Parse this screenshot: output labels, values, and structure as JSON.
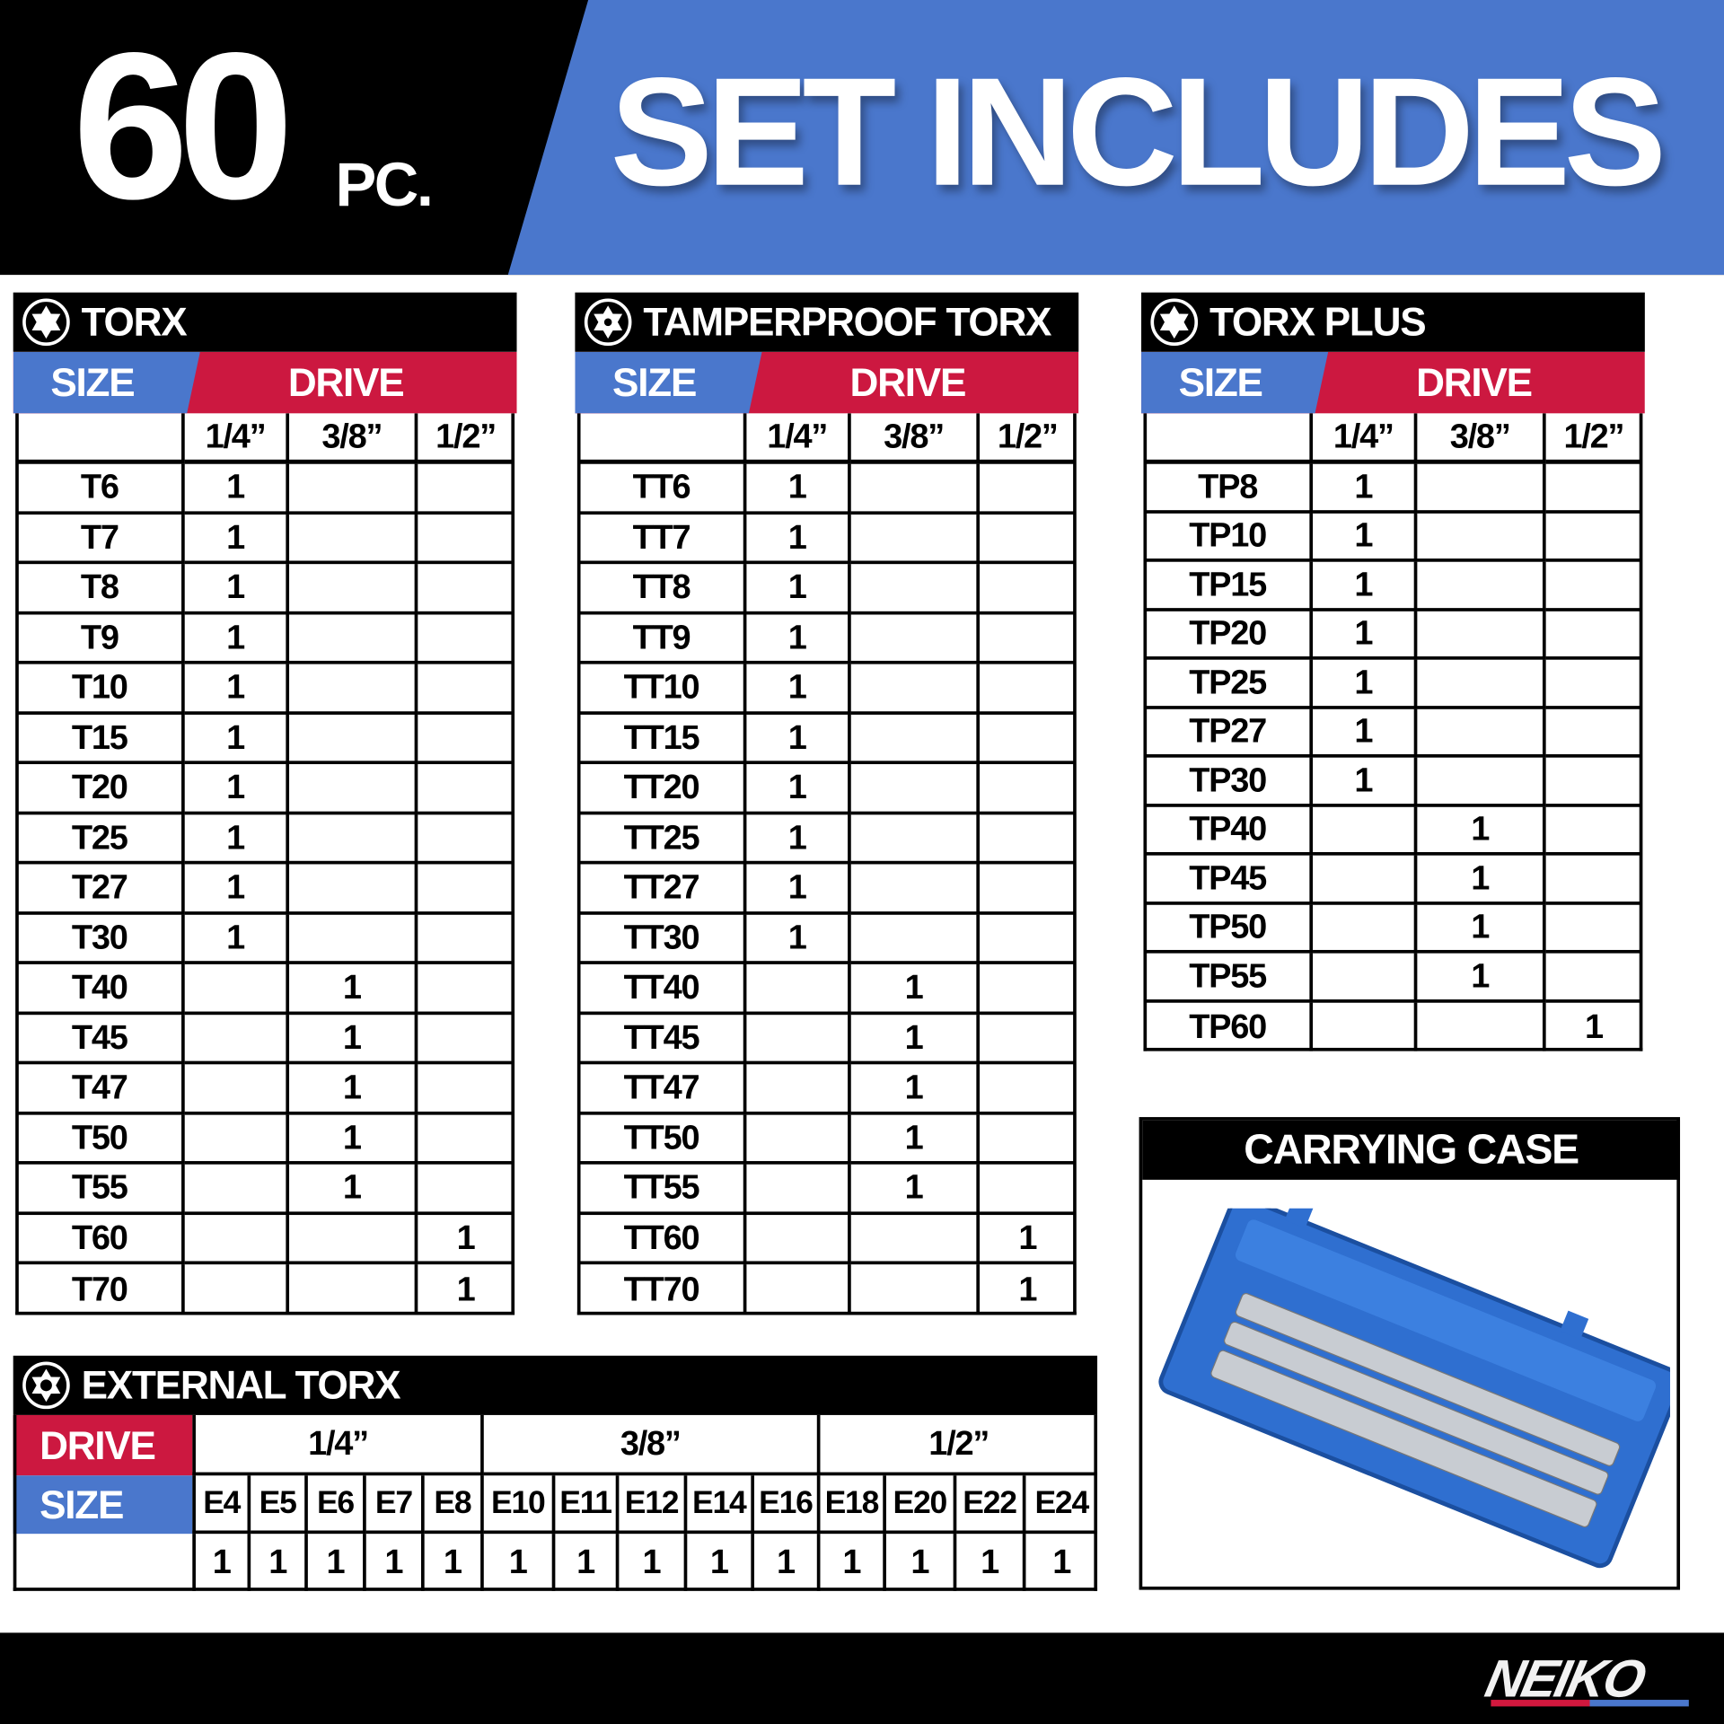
{
  "header": {
    "count": "60",
    "unit": "PC.",
    "title": "SET INCLUDES"
  },
  "colors": {
    "blue": "#4a77cc",
    "red": "#cc1840",
    "black": "#000000"
  },
  "labels": {
    "size": "SIZE",
    "drive": "DRIVE"
  },
  "drives": [
    "1/4”",
    "3/8”",
    "1/2”"
  ],
  "tables": [
    {
      "title": "TORX",
      "icon": "torx-star-icon",
      "rows": [
        [
          "T6",
          "1",
          "",
          ""
        ],
        [
          "T7",
          "1",
          "",
          ""
        ],
        [
          "T8",
          "1",
          "",
          ""
        ],
        [
          "T9",
          "1",
          "",
          ""
        ],
        [
          "T10",
          "1",
          "",
          ""
        ],
        [
          "T15",
          "1",
          "",
          ""
        ],
        [
          "T20",
          "1",
          "",
          ""
        ],
        [
          "T25",
          "1",
          "",
          ""
        ],
        [
          "T27",
          "1",
          "",
          ""
        ],
        [
          "T30",
          "1",
          "",
          ""
        ],
        [
          "T40",
          "",
          "1",
          ""
        ],
        [
          "T45",
          "",
          "1",
          ""
        ],
        [
          "T47",
          "",
          "1",
          ""
        ],
        [
          "T50",
          "",
          "1",
          ""
        ],
        [
          "T55",
          "",
          "1",
          ""
        ],
        [
          "T60",
          "",
          "",
          "1"
        ],
        [
          "T70",
          "",
          "",
          "1"
        ]
      ]
    },
    {
      "title": "TAMPERPROOF TORX",
      "icon": "tamperproof-torx-icon",
      "rows": [
        [
          "TT6",
          "1",
          "",
          ""
        ],
        [
          "TT7",
          "1",
          "",
          ""
        ],
        [
          "TT8",
          "1",
          "",
          ""
        ],
        [
          "TT9",
          "1",
          "",
          ""
        ],
        [
          "TT10",
          "1",
          "",
          ""
        ],
        [
          "TT15",
          "1",
          "",
          ""
        ],
        [
          "TT20",
          "1",
          "",
          ""
        ],
        [
          "TT25",
          "1",
          "",
          ""
        ],
        [
          "TT27",
          "1",
          "",
          ""
        ],
        [
          "TT30",
          "1",
          "",
          ""
        ],
        [
          "TT40",
          "",
          "1",
          ""
        ],
        [
          "TT45",
          "",
          "1",
          ""
        ],
        [
          "TT47",
          "",
          "1",
          ""
        ],
        [
          "TT50",
          "",
          "1",
          ""
        ],
        [
          "TT55",
          "",
          "1",
          ""
        ],
        [
          "TT60",
          "",
          "",
          "1"
        ],
        [
          "TT70",
          "",
          "",
          "1"
        ]
      ]
    },
    {
      "title": "TORX PLUS",
      "icon": "torx-plus-icon",
      "rows": [
        [
          "TP8",
          "1",
          "",
          ""
        ],
        [
          "TP10",
          "1",
          "",
          ""
        ],
        [
          "TP15",
          "1",
          "",
          ""
        ],
        [
          "TP20",
          "1",
          "",
          ""
        ],
        [
          "TP25",
          "1",
          "",
          ""
        ],
        [
          "TP27",
          "1",
          "",
          ""
        ],
        [
          "TP30",
          "1",
          "",
          ""
        ],
        [
          "TP40",
          "",
          "1",
          ""
        ],
        [
          "TP45",
          "",
          "1",
          ""
        ],
        [
          "TP50",
          "",
          "1",
          ""
        ],
        [
          "TP55",
          "",
          "1",
          ""
        ],
        [
          "TP60",
          "",
          "",
          "1"
        ]
      ]
    }
  ],
  "external": {
    "title": "EXTERNAL TORX",
    "icon": "external-torx-icon",
    "groups": [
      {
        "drive": "1/4”",
        "sizes": [
          "E4",
          "E5",
          "E6",
          "E7",
          "E8"
        ],
        "qty": [
          "1",
          "1",
          "1",
          "1",
          "1"
        ]
      },
      {
        "drive": "3/8”",
        "sizes": [
          "E10",
          "E11",
          "E12",
          "E14",
          "E16"
        ],
        "qty": [
          "1",
          "1",
          "1",
          "1",
          "1"
        ]
      },
      {
        "drive": "1/2”",
        "sizes": [
          "E18",
          "E20",
          "E22",
          "E24"
        ],
        "qty": [
          "1",
          "1",
          "1",
          "1"
        ]
      }
    ]
  },
  "case": {
    "title": "CARRYING CASE"
  },
  "brand": {
    "logo": "NEIKO"
  }
}
